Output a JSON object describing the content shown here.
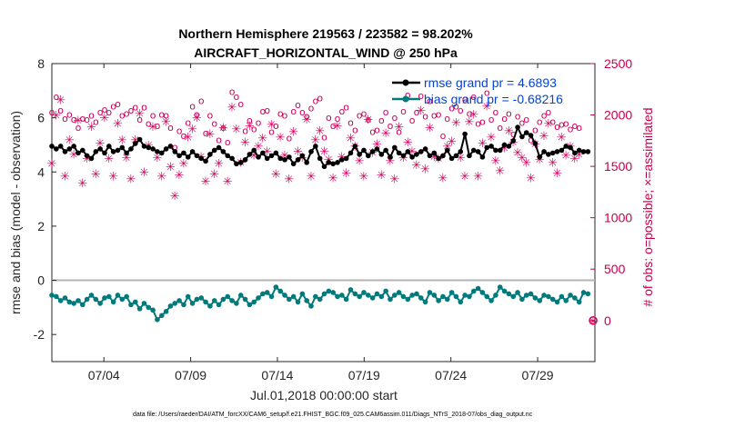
{
  "chart_data": {
    "type": "line",
    "title_line1": "Northern Hemisphere 219563 / 223582 = 98.202%",
    "title_line2": "AIRCRAFT_HORIZONTAL_WIND @ 250 hPa",
    "xlabel": "Jul.01,2018 00:00:00 start",
    "ylabel": "rmse and bias (model - observation)",
    "y2label": "# of obs: o=possible; ×=assimilated",
    "xlim": [
      1,
      32.3
    ],
    "ylim": [
      -3,
      8
    ],
    "y2lim": [
      -400,
      2500
    ],
    "x_ticks": [
      4,
      9,
      14,
      19,
      24,
      29
    ],
    "x_tick_labels": [
      "07/04",
      "07/09",
      "07/14",
      "07/19",
      "07/24",
      "07/29"
    ],
    "y_ticks": [
      -2,
      0,
      2,
      4,
      6,
      8
    ],
    "y2_ticks": [
      0,
      500,
      1000,
      1500,
      2000,
      2500
    ],
    "legend": [
      "rmse grand pr = 4.6893",
      "bias grand pr = -0.68216"
    ],
    "footer": "data file: /Users/raeder/DAI/ATM_forcXX/CAM6_setup/f.e21.FHIST_BGC.f09_025.CAM6assim.011/Diags_NTrS_2018-07/obs_diag_output.nc",
    "colors": {
      "rmse": "#000000",
      "bias": "#007a7a",
      "obs": "#d1005c",
      "zero_line": "#b3b3b3"
    },
    "rmse": [
      4.95,
      4.85,
      4.95,
      4.75,
      4.85,
      4.95,
      4.7,
      4.8,
      4.6,
      4.5,
      4.75,
      4.85,
      4.7,
      4.95,
      4.75,
      4.8,
      4.9,
      4.7,
      4.85,
      5.05,
      5.2,
      4.95,
      4.9,
      4.85,
      4.75,
      4.7,
      4.85,
      4.95,
      4.75,
      4.6,
      4.7,
      4.55,
      4.75,
      4.6,
      4.5,
      4.4,
      4.65,
      4.8,
      4.9,
      4.75,
      4.6,
      4.5,
      4.3,
      4.35,
      4.45,
      4.65,
      4.8,
      4.55,
      4.7,
      4.5,
      4.6,
      4.7,
      4.5,
      4.45,
      4.55,
      4.3,
      4.45,
      4.6,
      4.35,
      4.75,
      4.95,
      4.5,
      4.2,
      4.35,
      4.3,
      4.35,
      4.45,
      4.5,
      4.7,
      4.95,
      4.65,
      4.8,
      4.6,
      4.75,
      4.85,
      4.65,
      4.8,
      4.55,
      4.9,
      4.7,
      4.6,
      4.75,
      4.55,
      4.65,
      4.75,
      4.85,
      4.6,
      4.7,
      4.5,
      4.6,
      4.8,
      4.5,
      4.6,
      4.75,
      5.4,
      4.6,
      4.8,
      4.75,
      4.55,
      4.9,
      4.95,
      4.8,
      4.8,
      5.0,
      4.95,
      5.15,
      5.65,
      5.3,
      5.45,
      5.35,
      5.05,
      4.55,
      4.75,
      4.65,
      4.7,
      4.75,
      4.8,
      4.95,
      4.9,
      4.7,
      4.8,
      4.75,
      4.75
    ],
    "bias": [
      -0.55,
      -0.6,
      -0.75,
      -0.65,
      -0.8,
      -0.85,
      -0.75,
      -0.9,
      -0.7,
      -0.55,
      -0.7,
      -0.85,
      -0.65,
      -0.6,
      -0.8,
      -0.55,
      -0.7,
      -0.6,
      -0.9,
      -0.8,
      -1.05,
      -0.85,
      -1.0,
      -1.1,
      -1.45,
      -1.3,
      -1.15,
      -0.95,
      -0.85,
      -0.75,
      -0.9,
      -0.6,
      -0.85,
      -0.7,
      -0.65,
      -0.8,
      -0.95,
      -0.75,
      -0.9,
      -0.7,
      -0.6,
      -0.75,
      -0.85,
      -0.55,
      -0.7,
      -0.9,
      -0.8,
      -0.65,
      -0.5,
      -0.45,
      -0.6,
      -0.25,
      -0.4,
      -0.55,
      -0.7,
      -0.6,
      -0.8,
      -0.5,
      -0.75,
      -0.95,
      -0.6,
      -0.7,
      -0.5,
      -0.4,
      -0.45,
      -0.6,
      -0.55,
      -0.7,
      -0.35,
      -0.5,
      -0.6,
      -0.45,
      -0.55,
      -0.65,
      -0.5,
      -0.6,
      -0.4,
      -0.7,
      -0.55,
      -0.45,
      -0.6,
      -0.7,
      -0.55,
      -0.5,
      -0.65,
      -0.8,
      -0.45,
      -0.55,
      -0.75,
      -0.6,
      -0.7,
      -0.45,
      -0.6,
      -0.8,
      -0.55,
      -0.6,
      -0.4,
      -0.3,
      -0.45,
      -0.6,
      -0.75,
      -0.55,
      -0.25,
      -0.4,
      -0.5,
      -0.6,
      -0.45,
      -0.7,
      -0.55,
      -0.5,
      -0.65,
      -0.75,
      -0.55,
      -0.6,
      -0.7,
      -0.8,
      -0.6,
      -0.75,
      -0.55,
      -0.65,
      -0.8,
      -0.45,
      -0.5
    ],
    "obs_possible": [
      2030,
      2180,
      2050,
      1970,
      2010,
      1960,
      1880,
      1970,
      1960,
      2000,
      1940,
      2030,
      2060,
      2030,
      2090,
      2110,
      2000,
      2020,
      2050,
      2080,
      1960,
      2080,
      1920,
      2000,
      1900,
      2010,
      2000,
      1880,
      1690,
      1850,
      1800,
      1930,
      2090,
      2010,
      2140,
      1830,
      2000,
      1920,
      1760,
      1880,
      1740,
      2230,
      2180,
      2110,
      1850,
      1950,
      1870,
      1930,
      2040,
      2050,
      1840,
      1900,
      2020,
      2000,
      1780,
      2040,
      2100,
      2030,
      1990,
      2070,
      2140,
      2170,
      1790,
      1980,
      1900,
      1970,
      2040,
      2080,
      1930,
      1860,
      2000,
      2020,
      1960,
      1840,
      1860,
      1950,
      2030,
      1900,
      1980,
      1840,
      2040,
      2200,
      1950,
      2030,
      2190,
      1990,
      2140,
      2000,
      2010,
      1800,
      1970,
      2070,
      2090,
      2050,
      2160,
      2020,
      2180,
      1920,
      1940,
      2220,
      1960,
      2030,
      1880,
      1970,
      2020,
      1820,
      1990,
      1930,
      1960,
      1760,
      1860,
      1940,
      2000,
      2030,
      1940,
      1890,
      1910,
      1920,
      1870,
      1900,
      1880
    ],
    "obs_assim": [
      1530,
      2000,
      2150,
      1410,
      1760,
      1620,
      1950,
      1340,
      1580,
      1890,
      1430,
      1730,
      1980,
      1580,
      1410,
      1920,
      1760,
      1590,
      1380,
      1760,
      2020,
      1450,
      1710,
      1890,
      1590,
      1410,
      1940,
      1500,
      1220,
      1420,
      1530,
      1790,
      1870,
      1980,
      1600,
      1360,
      1820,
      1430,
      1530,
      1880,
      1360,
      2080,
      1870,
      1540,
      1740,
      1900,
      1610,
      1700,
      1780,
      1650,
      1910,
      1430,
      1790,
      1610,
      1380,
      1840,
      1650,
      1590,
      1960,
      1410,
      1760,
      1850,
      1650,
      1570,
      1390,
      1900,
      1600,
      1440,
      1780,
      1700,
      1560,
      1410,
      1960,
      1640,
      1720,
      1420,
      1830,
      1560,
      1380,
      1890,
      1590,
      1740,
      1650,
      1520,
      2050,
      1480,
      1880,
      1600,
      1580,
      1390,
      1700,
      1750,
      1930,
      1590,
      1410,
      1940,
      2010,
      1410,
      1730,
      2090,
      1790,
      1560,
      1460,
      1680,
      1850,
      1740,
      1640,
      1590,
      1540,
      1390,
      1720,
      1570,
      1800,
      1920,
      1540,
      1440,
      1790,
      1610,
      1700,
      1580,
      1620
    ],
    "extra_point": {
      "x": 32.2,
      "rmse_obs_possible": 0,
      "obs_assim": 0
    }
  }
}
